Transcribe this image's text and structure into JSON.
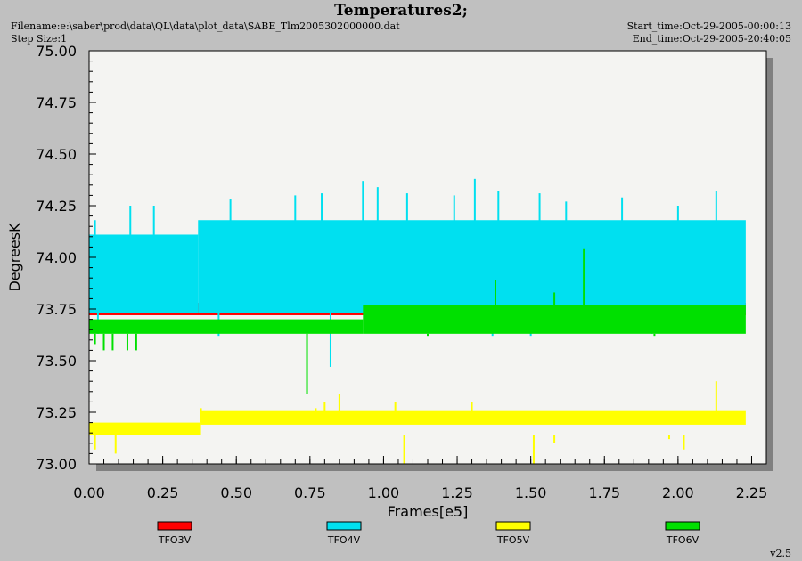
{
  "header": {
    "title": "Temperatures2;",
    "filename": "Filename:e:\\saber\\prod\\data\\QL\\data\\plot_data\\SABE_Tlm2005302000000.dat",
    "step_size": "Step Size:1",
    "start_time": "Start_time:Oct-29-2005-00:00:13",
    "end_time": "End_time:Oct-29-2005-20:40:05"
  },
  "version": "v2.5",
  "chart_data": {
    "type": "line",
    "title": "Temperatures2;",
    "xlabel": "Frames[e5]",
    "ylabel": "DegreesK",
    "xlim": [
      0.0,
      2.3
    ],
    "ylim": [
      73.0,
      75.0
    ],
    "x_ticks": [
      "0.00",
      "0.25",
      "0.50",
      "0.75",
      "1.00",
      "1.25",
      "1.50",
      "1.75",
      "2.00",
      "2.25"
    ],
    "y_ticks": [
      "73.00",
      "73.25",
      "73.50",
      "73.75",
      "74.00",
      "74.25",
      "74.50",
      "74.75",
      "75.00"
    ],
    "x_end": 2.23,
    "legend_position": "bottom",
    "series": [
      {
        "name": "TFO3V",
        "color": "#ff0000",
        "band_low": 73.72,
        "band_high": 73.78,
        "spikes_up": [
          [
            0.93,
            73.82
          ],
          [
            1.67,
            73.82
          ],
          [
            2.2,
            73.82
          ]
        ],
        "spikes_down": []
      },
      {
        "name": "TFO4V",
        "color": "#00e0f0",
        "band_low": 73.73,
        "band_high": 74.11,
        "step_x": 0.37,
        "step_high": 74.18,
        "spikes_up": [
          [
            0.02,
            74.18
          ],
          [
            0.14,
            74.25
          ],
          [
            0.22,
            74.25
          ],
          [
            0.48,
            74.28
          ],
          [
            0.7,
            74.3
          ],
          [
            0.79,
            74.31
          ],
          [
            0.93,
            74.37
          ],
          [
            0.98,
            74.34
          ],
          [
            1.08,
            74.31
          ],
          [
            1.24,
            74.3
          ],
          [
            1.31,
            74.38
          ],
          [
            1.39,
            74.32
          ],
          [
            1.53,
            74.31
          ],
          [
            1.62,
            74.27
          ],
          [
            1.81,
            74.29
          ],
          [
            2.0,
            74.25
          ],
          [
            2.13,
            74.32
          ]
        ],
        "spikes_down": [
          [
            0.03,
            73.63
          ],
          [
            0.44,
            73.62
          ],
          [
            0.82,
            73.47
          ],
          [
            1.37,
            73.62
          ],
          [
            1.5,
            73.62
          ],
          [
            1.91,
            73.63
          ]
        ]
      },
      {
        "name": "TFO5V",
        "color": "#ffff00",
        "band_low": 73.14,
        "band_high": 73.2,
        "step_x": 0.38,
        "step_low": 73.19,
        "step_high": 73.26,
        "spikes_up": [
          [
            0.38,
            73.27
          ],
          [
            0.77,
            73.27
          ],
          [
            0.8,
            73.3
          ],
          [
            0.85,
            73.34
          ],
          [
            1.04,
            73.3
          ],
          [
            1.3,
            73.3
          ],
          [
            2.13,
            73.4
          ]
        ],
        "spikes_down": [
          [
            0.02,
            73.07
          ],
          [
            0.09,
            73.05
          ],
          [
            1.07,
            73.0
          ],
          [
            1.51,
            73.0
          ],
          [
            1.58,
            73.1
          ],
          [
            1.97,
            73.12
          ],
          [
            2.02,
            73.07
          ]
        ]
      },
      {
        "name": "TFO6V",
        "color": "#00e000",
        "band_low": 73.63,
        "band_high": 73.7,
        "step_x": 0.93,
        "step_high": 73.77,
        "spikes_up": [
          [
            1.38,
            73.89
          ],
          [
            1.58,
            73.83
          ],
          [
            1.68,
            74.04
          ],
          [
            2.2,
            73.75
          ]
        ],
        "spikes_down": [
          [
            0.02,
            73.58
          ],
          [
            0.05,
            73.55
          ],
          [
            0.08,
            73.55
          ],
          [
            0.13,
            73.55
          ],
          [
            0.16,
            73.55
          ],
          [
            0.74,
            73.34
          ],
          [
            1.15,
            73.62
          ],
          [
            1.92,
            73.62
          ]
        ]
      }
    ]
  }
}
